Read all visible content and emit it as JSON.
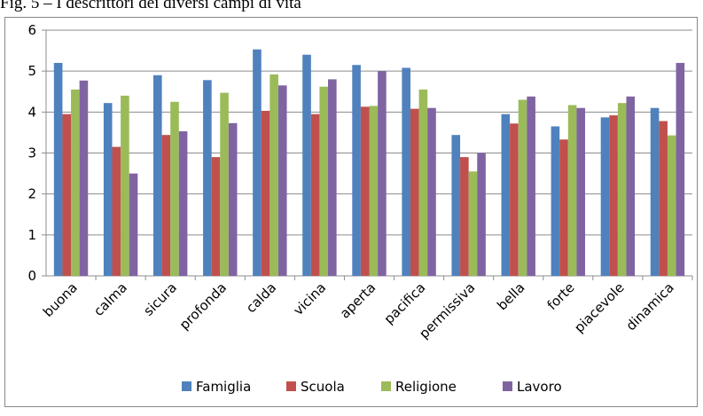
{
  "figure_caption": "Fig. 5 – I descrittori dei diversi campi di vita",
  "chart_data": {
    "type": "bar",
    "title": "",
    "xlabel": "",
    "ylabel": "",
    "ylim": [
      0,
      6
    ],
    "yticks": [
      "0",
      "1",
      "2",
      "3",
      "4",
      "5",
      "6"
    ],
    "grid": true,
    "legend_position": "bottom",
    "categories": [
      "buona",
      "calma",
      "sicura",
      "profonda",
      "calda",
      "vicina",
      "aperta",
      "pacifica",
      "permissiva",
      "bella",
      "forte",
      "piacevole",
      "dinamica"
    ],
    "series": [
      {
        "name": "Famiglia",
        "color": "#4F81BD",
        "values": [
          5.2,
          4.22,
          4.9,
          4.78,
          5.53,
          5.4,
          5.15,
          5.08,
          3.44,
          3.95,
          3.65,
          3.87,
          4.1
        ]
      },
      {
        "name": "Scuola",
        "color": "#C0504D",
        "values": [
          3.95,
          3.15,
          3.44,
          2.9,
          4.03,
          3.95,
          4.13,
          4.08,
          2.9,
          3.72,
          3.33,
          3.92,
          3.78
        ]
      },
      {
        "name": "Religione",
        "color": "#9BBB59",
        "values": [
          4.55,
          4.4,
          4.25,
          4.47,
          4.92,
          4.62,
          4.15,
          4.55,
          2.55,
          4.3,
          4.17,
          4.22,
          3.43
        ]
      },
      {
        "name": "Lavoro",
        "color": "#8064A2",
        "values": [
          4.77,
          2.5,
          3.53,
          3.73,
          4.65,
          4.8,
          5.0,
          4.1,
          3.0,
          4.38,
          4.1,
          4.38,
          5.2
        ]
      }
    ]
  }
}
